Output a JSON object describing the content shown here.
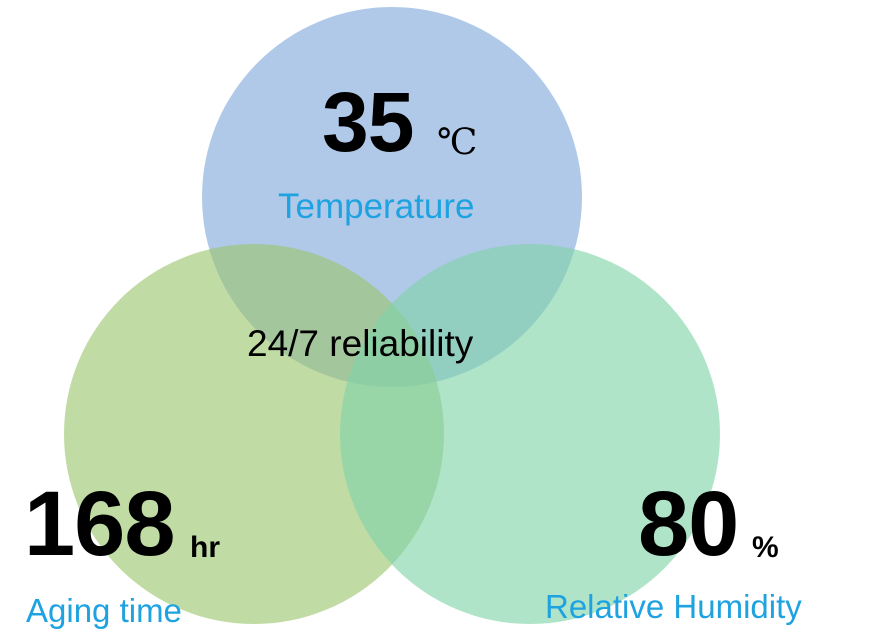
{
  "diagram": {
    "center_label": "24/7 reliability",
    "circles": [
      {
        "id": "temperature",
        "value": "35",
        "unit": "℃",
        "caption": "Temperature",
        "color": "#7fa8dc"
      },
      {
        "id": "aging",
        "value": "168",
        "unit": "hr",
        "caption": "Aging time",
        "color": "#9bc56e"
      },
      {
        "id": "humidity",
        "value": "80",
        "unit": "%",
        "caption": "Relative Humidity",
        "color": "#7fd3a8"
      }
    ],
    "caption_color": "#1fa3e0"
  }
}
